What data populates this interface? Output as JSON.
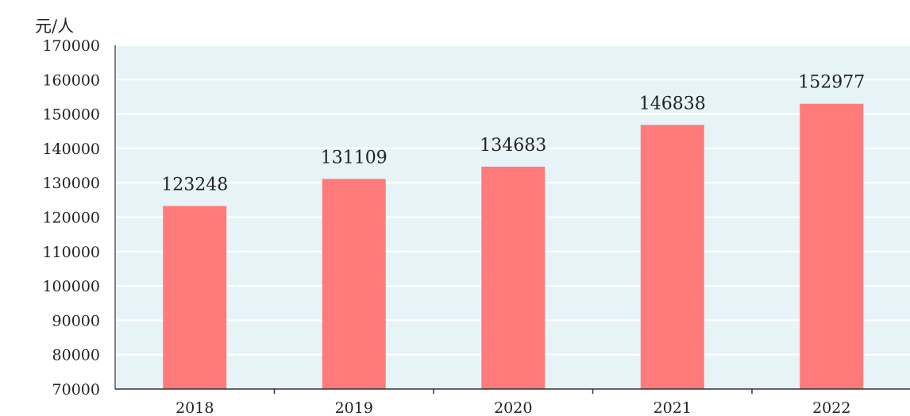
{
  "chart_data": {
    "type": "bar",
    "title": "",
    "xlabel": "",
    "ylabel": "元/人",
    "categories": [
      "2018",
      "2019",
      "2020",
      "2021",
      "2022"
    ],
    "values": [
      123248,
      131109,
      134683,
      146838,
      152977
    ],
    "ylim": [
      70000,
      170000
    ],
    "yticks": [
      70000,
      80000,
      90000,
      100000,
      110000,
      120000,
      130000,
      140000,
      150000,
      160000,
      170000
    ],
    "data_labels": [
      "123248",
      "131109",
      "134683",
      "146838",
      "152977"
    ],
    "grid": true,
    "bar_color": "#FF7B7B",
    "plot_background": "#E6F4F8",
    "grid_color": "#FFFFFF"
  }
}
